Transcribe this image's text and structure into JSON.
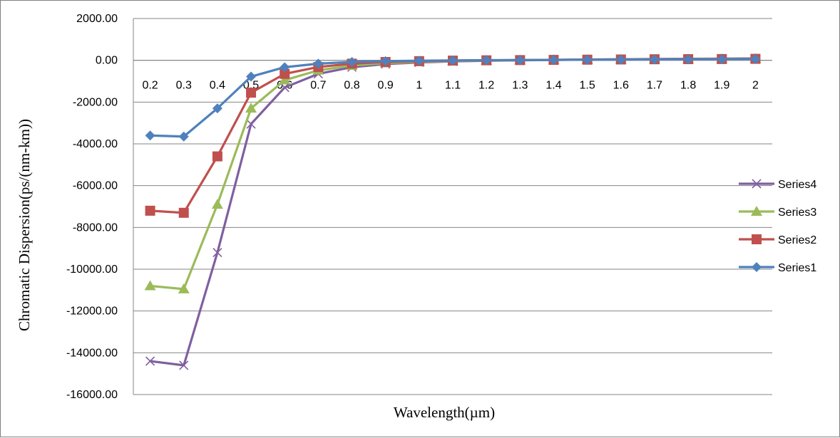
{
  "chart_data": {
    "type": "line",
    "title": "",
    "xlabel": "Wavelength(µm)",
    "ylabel": "Chromatic Dispersion(ps/(nm-km))",
    "categories": [
      "0.2",
      "0.3",
      "0.4",
      "0.5",
      "0.6",
      "0.7",
      "0.8",
      "0.9",
      "1",
      "1.1",
      "1.2",
      "1.3",
      "1.4",
      "1.5",
      "1.6",
      "1.7",
      "1.8",
      "1.9",
      "2"
    ],
    "y_ticks": [
      "2000.00",
      "0.00",
      "-2000.00",
      "-4000.00",
      "-6000.00",
      "-8000.00",
      "-10000.00",
      "-12000.00",
      "-14000.00",
      "-16000.00"
    ],
    "ylim": [
      -16000,
      2000
    ],
    "grid": "horizontal",
    "legend_position": "right",
    "series": [
      {
        "name": "Series4",
        "color": "#7f5fa0",
        "marker": "x",
        "values": [
          -14400,
          -14600,
          -9200,
          -3050,
          -1300,
          -650,
          -330,
          -180,
          -100,
          -50,
          -20,
          0,
          20,
          35,
          50,
          60,
          70,
          80,
          90
        ]
      },
      {
        "name": "Series3",
        "color": "#9bbb59",
        "marker": "triangle",
        "values": [
          -10800,
          -10950,
          -6900,
          -2300,
          -950,
          -480,
          -250,
          -130,
          -70,
          -35,
          -10,
          5,
          20,
          30,
          40,
          50,
          60,
          70,
          80
        ]
      },
      {
        "name": "Series2",
        "color": "#c0504d",
        "marker": "square",
        "values": [
          -7200,
          -7300,
          -4600,
          -1550,
          -650,
          -320,
          -160,
          -80,
          -40,
          -15,
          0,
          10,
          20,
          30,
          40,
          50,
          55,
          60,
          70
        ]
      },
      {
        "name": "Series1",
        "color": "#4f81bd",
        "marker": "diamond",
        "values": [
          -3600,
          -3650,
          -2300,
          -780,
          -330,
          -160,
          -80,
          -40,
          -20,
          -5,
          5,
          10,
          20,
          25,
          30,
          40,
          45,
          50,
          55
        ]
      }
    ]
  }
}
